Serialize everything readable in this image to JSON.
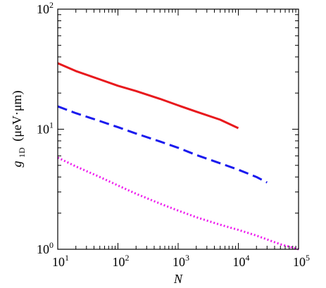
{
  "chart_data": {
    "type": "line",
    "xlabel": "N",
    "ylabel": {
      "symbol": "g",
      "subscript": "1D",
      "unit": "(μeV·μm)"
    },
    "xscale": "log",
    "yscale": "log",
    "xlim": [
      10,
      100000
    ],
    "ylim": [
      1,
      100
    ],
    "grid": false,
    "legend": "none",
    "x_tick_labels": [
      {
        "base": "10",
        "exp": "1",
        "value": 10
      },
      {
        "base": "10",
        "exp": "2",
        "value": 100
      },
      {
        "base": "10",
        "exp": "3",
        "value": 1000
      },
      {
        "base": "10",
        "exp": "4",
        "value": 10000
      },
      {
        "base": "10",
        "exp": "5",
        "value": 100000
      }
    ],
    "y_tick_labels": [
      {
        "base": "10",
        "exp": "0",
        "value": 1
      },
      {
        "base": "10",
        "exp": "1",
        "value": 10
      },
      {
        "base": "10",
        "exp": "2",
        "value": 100
      }
    ],
    "series": [
      {
        "color": "#e8191d",
        "style": "solid",
        "x": [
          10,
          20,
          50,
          100,
          200,
          500,
          1000,
          2000,
          5000,
          10000
        ],
        "y": [
          35.5,
          30.5,
          26.0,
          23.0,
          20.8,
          17.9,
          15.8,
          14.0,
          12.0,
          10.2
        ]
      },
      {
        "color": "#1a1aee",
        "style": "dashed",
        "x": [
          10,
          20,
          50,
          100,
          200,
          500,
          1000,
          2000,
          5000,
          10000,
          20000,
          30000
        ],
        "y": [
          15.5,
          13.6,
          11.7,
          10.4,
          9.2,
          7.9,
          7.0,
          6.1,
          5.2,
          4.6,
          4.0,
          3.6
        ]
      },
      {
        "color": "#ee1aee",
        "style": "dotted",
        "x": [
          10,
          20,
          50,
          100,
          200,
          500,
          1000,
          2000,
          5000,
          10000,
          20000,
          50000,
          100000
        ],
        "y": [
          5.8,
          4.9,
          4.0,
          3.4,
          2.9,
          2.4,
          2.1,
          1.85,
          1.6,
          1.45,
          1.3,
          1.1,
          0.98
        ]
      }
    ]
  }
}
